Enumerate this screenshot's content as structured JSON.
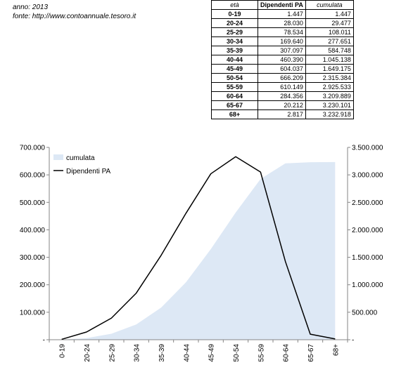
{
  "meta": {
    "anno": "anno: 2013",
    "fonte": "fonte: http://www.contoannuale.tesoro.it"
  },
  "table": {
    "headers": [
      "età",
      "Dipendenti PA",
      "cumulata"
    ],
    "rows": [
      [
        "0-19",
        "1.447",
        "1.447"
      ],
      [
        "20-24",
        "28.030",
        "29.477"
      ],
      [
        "25-29",
        "78.534",
        "108.011"
      ],
      [
        "30-34",
        "169.640",
        "277.651"
      ],
      [
        "35-39",
        "307.097",
        "584.748"
      ],
      [
        "40-44",
        "460.390",
        "1.045.138"
      ],
      [
        "45-49",
        "604.037",
        "1.649.175"
      ],
      [
        "50-54",
        "666.209",
        "2.315.384"
      ],
      [
        "55-59",
        "610.149",
        "2.925.533"
      ],
      [
        "60-64",
        "284.356",
        "3.209.889"
      ],
      [
        "65-67",
        "20.212",
        "3.230.101"
      ],
      [
        "68+",
        "2.817",
        "3.232.918"
      ]
    ]
  },
  "chart_data": {
    "type": "line",
    "categories": [
      "0-19",
      "20-24",
      "25-29",
      "30-34",
      "35-39",
      "40-44",
      "45-49",
      "50-54",
      "55-59",
      "60-64",
      "65-67",
      "68+"
    ],
    "series": [
      {
        "name": "cumulata",
        "type": "area",
        "axis": "right",
        "color": "#dde8f5",
        "values": [
          1447,
          29477,
          108011,
          277651,
          584748,
          1045138,
          1649175,
          2315384,
          2925533,
          3209889,
          3230101,
          3232918
        ]
      },
      {
        "name": "Dipendenti PA",
        "type": "line",
        "axis": "left",
        "color": "#000000",
        "values": [
          1447,
          28030,
          78534,
          169640,
          307097,
          460390,
          604037,
          666209,
          610149,
          284356,
          20212,
          2817
        ]
      }
    ],
    "left_axis": {
      "ylim": [
        0,
        700000
      ],
      "tick_labels": [
        "-",
        "100.000",
        "200.000",
        "300.000",
        "400.000",
        "500.000",
        "600.000",
        "700.000"
      ]
    },
    "right_axis": {
      "ylim": [
        0,
        3500000
      ],
      "tick_labels": [
        "-",
        "500.000",
        "1.000.000",
        "1.500.000",
        "2.000.000",
        "2.500.000",
        "3.000.000",
        "3.500.000"
      ]
    },
    "legend_position": "top-left",
    "grid": false
  }
}
